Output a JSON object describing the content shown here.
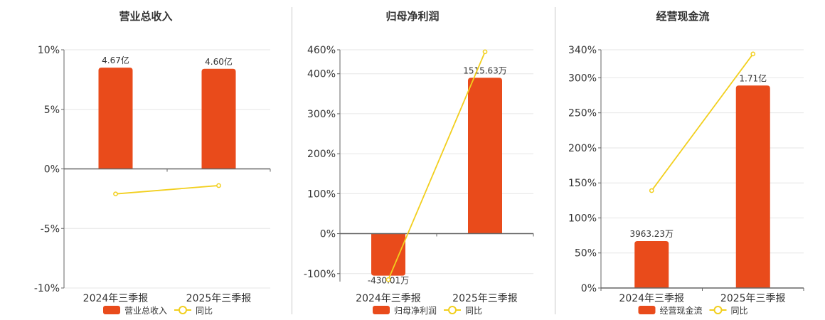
{
  "colors": {
    "bar": "#e94b1b",
    "line": "#f2cf1e",
    "grid": "#e6e6e6",
    "axis": "#666666"
  },
  "chart_data": [
    {
      "type": "bar",
      "title": "营业总收入",
      "categories": [
        "2024年三季报",
        "2025年三季报"
      ],
      "bar_labels": [
        "4.67亿",
        "4.60亿"
      ],
      "series": [
        {
          "name": "营业总收入",
          "kind": "bar",
          "values": [
            8.5,
            8.4
          ]
        },
        {
          "name": "同比",
          "kind": "line",
          "values": [
            -2.1,
            -1.4
          ]
        }
      ],
      "y_ticks": [
        "10%",
        "5%",
        "0%",
        "-5%",
        "-10%"
      ],
      "ylim": [
        -10,
        10
      ],
      "grid": true,
      "legend_position": "bottom"
    },
    {
      "type": "bar",
      "title": "归母净利润",
      "categories": [
        "2024年三季报",
        "2025年三季报"
      ],
      "bar_labels": [
        "-430.01万",
        "1515.63万"
      ],
      "series": [
        {
          "name": "归母净利润",
          "kind": "bar",
          "values": [
            -105,
            390
          ]
        },
        {
          "name": "同比",
          "kind": "line",
          "values": [
            -115,
            455
          ]
        }
      ],
      "y_ticks": [
        "460%",
        "400%",
        "300%",
        "200%",
        "100%",
        "0%",
        "-100%"
      ],
      "ylim": [
        -120,
        460
      ],
      "grid": true,
      "legend_position": "bottom"
    },
    {
      "type": "bar",
      "title": "经营现金流",
      "categories": [
        "2024年三季报",
        "2025年三季报"
      ],
      "bar_labels": [
        "3963.23万",
        "1.71亿"
      ],
      "series": [
        {
          "name": "经营现金流",
          "kind": "bar",
          "values": [
            67,
            289
          ]
        },
        {
          "name": "同比",
          "kind": "line",
          "values": [
            139,
            334
          ]
        }
      ],
      "y_ticks": [
        "340%",
        "300%",
        "250%",
        "200%",
        "150%",
        "100%",
        "50%",
        "0%"
      ],
      "ylim": [
        0,
        340
      ],
      "grid": true,
      "legend_position": "bottom"
    }
  ]
}
